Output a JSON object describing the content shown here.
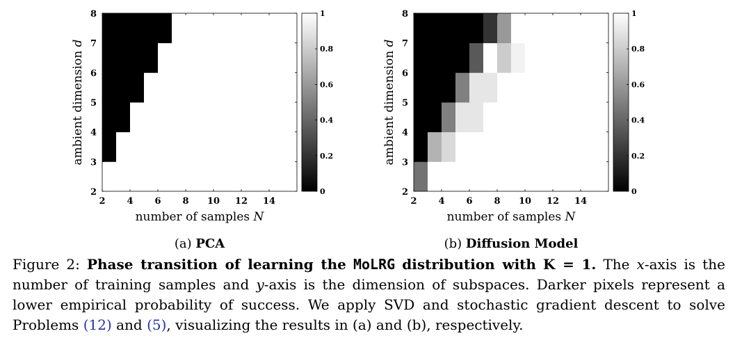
{
  "chart_data": [
    {
      "type": "heatmap",
      "xlabel": "number of samples N",
      "ylabel": "ambient dimension d",
      "xlim": [
        2,
        16
      ],
      "ylim": [
        2,
        8
      ],
      "xticks": [
        "2",
        "4",
        "6",
        "8",
        "10",
        "12",
        "14"
      ],
      "yticks": [
        "2",
        "3",
        "4",
        "5",
        "6",
        "7",
        "8"
      ],
      "colorbar": {
        "range": [
          0,
          1
        ],
        "ticks": [
          "0",
          "0.2",
          "0.4",
          "0.6",
          "0.8",
          "1"
        ]
      },
      "x": [
        2,
        3,
        4,
        5,
        6,
        7,
        8,
        9,
        10,
        11,
        12,
        13,
        14,
        15
      ],
      "y": [
        2,
        3,
        4,
        5,
        6,
        7
      ],
      "values": [
        [
          1,
          1,
          1,
          1,
          1,
          1,
          1,
          1,
          1,
          1,
          1,
          1,
          1,
          1
        ],
        [
          0,
          1,
          1,
          1,
          1,
          1,
          1,
          1,
          1,
          1,
          1,
          1,
          1,
          1
        ],
        [
          0,
          0,
          1,
          1,
          1,
          1,
          1,
          1,
          1,
          1,
          1,
          1,
          1,
          1
        ],
        [
          0,
          0,
          0,
          1,
          1,
          1,
          1,
          1,
          1,
          1,
          1,
          1,
          1,
          1
        ],
        [
          0,
          0,
          0,
          0,
          1,
          1,
          1,
          1,
          1,
          1,
          1,
          1,
          1,
          1
        ],
        [
          0,
          0,
          0,
          0,
          0,
          1,
          1,
          1,
          1,
          1,
          1,
          1,
          1,
          1
        ]
      ],
      "subcaption_prefix": "(a)",
      "subcaption": "PCA"
    },
    {
      "type": "heatmap",
      "xlabel": "number of samples N",
      "ylabel": "ambient dimension d",
      "xlim": [
        2,
        16
      ],
      "ylim": [
        2,
        8
      ],
      "xticks": [
        "2",
        "4",
        "6",
        "8",
        "10",
        "12",
        "14"
      ],
      "yticks": [
        "2",
        "3",
        "4",
        "5",
        "6",
        "7",
        "8"
      ],
      "colorbar": {
        "range": [
          0,
          1
        ],
        "ticks": [
          "0",
          "0.2",
          "0.4",
          "0.6",
          "0.8",
          "1"
        ]
      },
      "x": [
        2,
        3,
        4,
        5,
        6,
        7,
        8,
        9,
        10,
        11,
        12,
        13,
        14,
        15
      ],
      "y": [
        2,
        3,
        4,
        5,
        6,
        7
      ],
      "values": [
        [
          0.45,
          1,
          1,
          1,
          1,
          1,
          1,
          1,
          1,
          1,
          1,
          1,
          1,
          1
        ],
        [
          0,
          0.7,
          0.85,
          1,
          1,
          1,
          1,
          1,
          1,
          1,
          1,
          1,
          1,
          1
        ],
        [
          0,
          0,
          0.5,
          0.9,
          0.9,
          1,
          1,
          1,
          1,
          1,
          1,
          1,
          1,
          1
        ],
        [
          0,
          0,
          0,
          0.5,
          0.9,
          0.9,
          1,
          1,
          1,
          1,
          1,
          1,
          1,
          1
        ],
        [
          0,
          0,
          0,
          0,
          0.35,
          1,
          0.8,
          0.95,
          1,
          1,
          1,
          1,
          1,
          1
        ],
        [
          0,
          0,
          0,
          0,
          0,
          0.2,
          0.6,
          1,
          1,
          1,
          1,
          1,
          1,
          1
        ]
      ],
      "subcaption_prefix": "(b)",
      "subcaption": "Diffusion Model"
    }
  ],
  "caption": {
    "fig": "Figure 2:",
    "bold_a": "Phase transition of learning the",
    "mono": "MoLRG",
    "bold_b": "distribution with",
    "bold_k": "K = 1.",
    "t1": "The ",
    "xvar": "x",
    "t2": "-axis is the number of training samples and ",
    "yvar": "y",
    "t3": "-axis is the dimension of subspaces.  Darker pixels represent a lower empirical probability of success. We apply SVD and stochastic gradient descent to solve Problems ",
    "ref1": "(12)",
    "t4": " and ",
    "ref2": "(5)",
    "t5": ", visualizing the results in (a) and (b), respectively."
  }
}
